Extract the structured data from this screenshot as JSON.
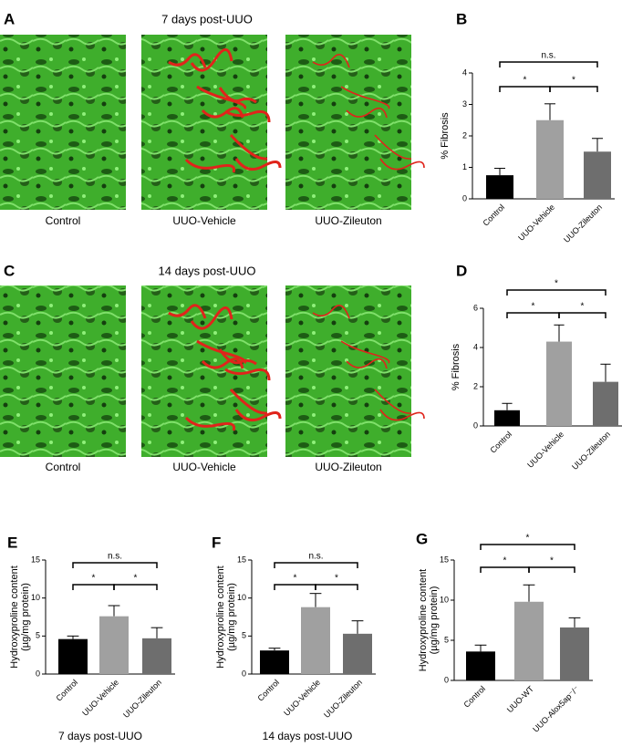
{
  "image_panels": [
    {
      "label": "A",
      "title": "7 days post-UUO",
      "captions": [
        "Control",
        "UUO-Vehicle",
        "UUO-Zileuton"
      ]
    },
    {
      "label": "C",
      "title": "14 days post-UUO",
      "captions": [
        "Control",
        "UUO-Vehicle",
        "UUO-Zileuton"
      ]
    }
  ],
  "chart_data": [
    {
      "type": "bar",
      "label": "B",
      "ylabel": [
        "% Fibrosis"
      ],
      "categories": [
        "Control",
        "UUO-Vehicle",
        "UUO-Zileuton"
      ],
      "values": [
        0.75,
        2.5,
        1.5
      ],
      "errors": [
        0.22,
        0.52,
        0.42
      ],
      "colors": [
        "#000000",
        "#a0a0a0",
        "#6e6e6e"
      ],
      "ylim": [
        0,
        4
      ],
      "yticks": [
        0,
        1,
        2,
        3,
        4
      ],
      "brackets": [
        {
          "from": 0,
          "to": 1,
          "label": "*"
        },
        {
          "from": 1,
          "to": 2,
          "label": "*"
        },
        {
          "from": 0,
          "to": 2,
          "label": "n.s."
        }
      ]
    },
    {
      "type": "bar",
      "label": "D",
      "ylabel": [
        "% Fibrosis"
      ],
      "categories": [
        "Control",
        "UUO-Vehicle",
        "UUO-Zileuton"
      ],
      "values": [
        0.8,
        4.3,
        2.25
      ],
      "errors": [
        0.35,
        0.85,
        0.9
      ],
      "colors": [
        "#000000",
        "#a0a0a0",
        "#6e6e6e"
      ],
      "ylim": [
        0,
        6
      ],
      "yticks": [
        0,
        2,
        4,
        6
      ],
      "brackets": [
        {
          "from": 0,
          "to": 1,
          "label": "*"
        },
        {
          "from": 1,
          "to": 2,
          "label": "*"
        },
        {
          "from": 0,
          "to": 2,
          "label": "*"
        }
      ]
    },
    {
      "type": "bar",
      "label": "E",
      "ylabel": [
        "Hydroxyproline content",
        "(µg/mg protein)"
      ],
      "categories": [
        "Control",
        "UUO-Vehicle",
        "UUO-Zileuton"
      ],
      "values": [
        4.6,
        7.6,
        4.7
      ],
      "errors": [
        0.4,
        1.4,
        1.4
      ],
      "colors": [
        "#000000",
        "#a0a0a0",
        "#6e6e6e"
      ],
      "ylim": [
        0,
        15
      ],
      "yticks": [
        0,
        5,
        10,
        15
      ],
      "caption": "7 days post-UUO",
      "brackets": [
        {
          "from": 0,
          "to": 1,
          "label": "*"
        },
        {
          "from": 1,
          "to": 2,
          "label": "*"
        },
        {
          "from": 0,
          "to": 2,
          "label": "n.s."
        }
      ]
    },
    {
      "type": "bar",
      "label": "F",
      "ylabel": [
        "Hydroxyproline content",
        "(µg/mg protein)"
      ],
      "categories": [
        "Control",
        "UUO-Vehicle",
        "UUO-Zileuton"
      ],
      "values": [
        3.1,
        8.8,
        5.3
      ],
      "errors": [
        0.3,
        1.8,
        1.7
      ],
      "colors": [
        "#000000",
        "#a0a0a0",
        "#6e6e6e"
      ],
      "ylim": [
        0,
        15
      ],
      "yticks": [
        0,
        5,
        10,
        15
      ],
      "caption": "14 days post-UUO",
      "brackets": [
        {
          "from": 0,
          "to": 1,
          "label": "*"
        },
        {
          "from": 1,
          "to": 2,
          "label": "*"
        },
        {
          "from": 0,
          "to": 2,
          "label": "n.s."
        }
      ]
    },
    {
      "type": "bar",
      "label": "G",
      "ylabel": [
        "Hydroxyproline content",
        "(µg/mg protein)"
      ],
      "categories": [
        "Control",
        "UUO-WT",
        "UUO-Alox5ap⁻/⁻"
      ],
      "values": [
        3.6,
        9.8,
        6.6
      ],
      "errors": [
        0.8,
        2.1,
        1.2
      ],
      "colors": [
        "#000000",
        "#a0a0a0",
        "#6e6e6e"
      ],
      "ylim": [
        0,
        15
      ],
      "yticks": [
        0,
        5,
        10,
        15
      ],
      "brackets": [
        {
          "from": 0,
          "to": 1,
          "label": "*"
        },
        {
          "from": 1,
          "to": 2,
          "label": "*"
        },
        {
          "from": 0,
          "to": 2,
          "label": "*"
        }
      ]
    }
  ]
}
